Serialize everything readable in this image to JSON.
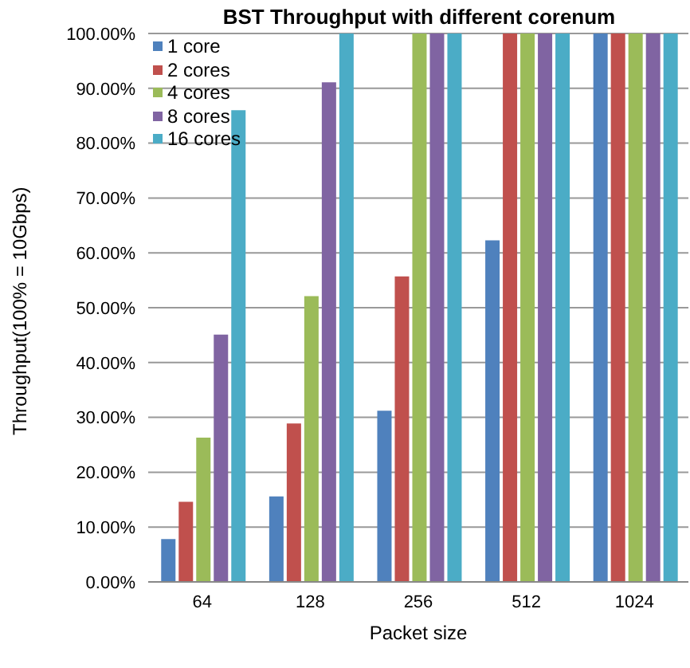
{
  "chart_data": {
    "type": "bar",
    "title": "BST Throughput  with different corenum",
    "xlabel": "Packet size",
    "ylabel": "Throughput(100% = 10Gbps)",
    "categories": [
      "64",
      "128",
      "256",
      "512",
      "1024"
    ],
    "series": [
      {
        "name": "1 core",
        "color": "#4f81bd",
        "values": [
          7.8,
          15.6,
          31.2,
          62.3,
          100
        ]
      },
      {
        "name": "2 cores",
        "color": "#c0504d",
        "values": [
          14.6,
          28.9,
          55.7,
          100,
          100
        ]
      },
      {
        "name": "4 cores",
        "color": "#9bbb59",
        "values": [
          26.3,
          52.1,
          100,
          100,
          100
        ]
      },
      {
        "name": "8 cores",
        "color": "#8064a2",
        "values": [
          45.1,
          91.1,
          100,
          100,
          100
        ]
      },
      {
        "name": "16 cores",
        "color": "#4bacc6",
        "values": [
          86,
          100,
          100,
          100,
          100
        ]
      }
    ],
    "ylim": [
      0,
      100
    ],
    "yticks": [
      {
        "value": 0,
        "label": "0.00%"
      },
      {
        "value": 10,
        "label": "10.00%"
      },
      {
        "value": 20,
        "label": "20.00%"
      },
      {
        "value": 30,
        "label": "30.00%"
      },
      {
        "value": 40,
        "label": "40.00%"
      },
      {
        "value": 50,
        "label": "50.00%"
      },
      {
        "value": 60,
        "label": "60.00%"
      },
      {
        "value": 70,
        "label": "70.00%"
      },
      {
        "value": 80,
        "label": "80.00%"
      },
      {
        "value": 90,
        "label": "90.00%"
      },
      {
        "value": 100,
        "label": "100.00%"
      }
    ],
    "grid": "y",
    "legend": "top left"
  }
}
